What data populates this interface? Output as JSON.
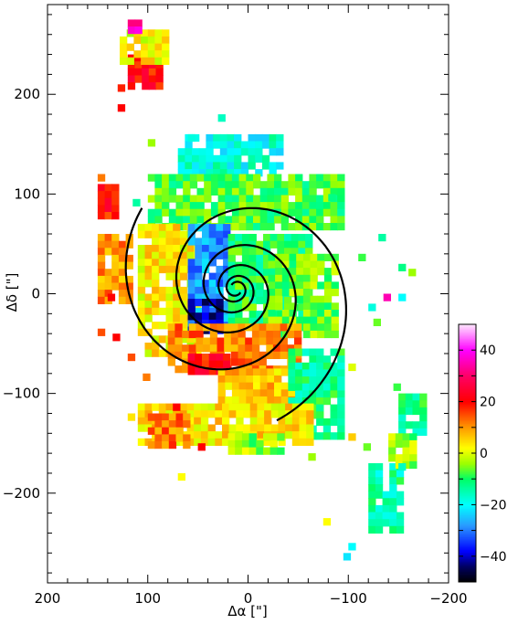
{
  "chart_data": {
    "type": "heatmap",
    "title": "",
    "xlabel": "Δα [\"]",
    "ylabel": "Δδ [\"]",
    "xlim": [
      200,
      -200
    ],
    "ylim": [
      -290,
      290
    ],
    "xticks": [
      200,
      100,
      0,
      -100,
      -200
    ],
    "xtick_labels": [
      "200",
      "100",
      "0",
      "−100",
      "−200"
    ],
    "yticks": [
      200,
      100,
      0,
      -100,
      -200
    ],
    "ytick_labels": [
      "200",
      "100",
      "0",
      "−100",
      "−200"
    ],
    "grid": false,
    "colorbar": {
      "position": "right",
      "range": [
        -50,
        50
      ],
      "ticks": [
        40,
        20,
        0,
        -20,
        -40
      ],
      "tick_labels": [
        "40",
        "20",
        "0",
        "−20",
        "−40"
      ],
      "colors": [
        {
          "value": -50,
          "color": "#000000"
        },
        {
          "value": -44,
          "color": "#000060"
        },
        {
          "value": -38,
          "color": "#0000ff"
        },
        {
          "value": -28,
          "color": "#2a9bff"
        },
        {
          "value": -20,
          "color": "#00ffff"
        },
        {
          "value": -10,
          "color": "#00ff66"
        },
        {
          "value": -4,
          "color": "#9cff00"
        },
        {
          "value": 2,
          "color": "#ffff00"
        },
        {
          "value": 10,
          "color": "#ff9900"
        },
        {
          "value": 20,
          "color": "#ff0000"
        },
        {
          "value": 30,
          "color": "#ff0066"
        },
        {
          "value": 40,
          "color": "#ff00ff"
        },
        {
          "value": 50,
          "color": "#ffe6ff"
        }
      ]
    },
    "pixel_size_arcsec": 7,
    "regions": [
      {
        "x": [
          120,
          85
        ],
        "y": [
          240,
          205
        ],
        "value": 20
      },
      {
        "x": [
          128,
          85
        ],
        "y": [
          265,
          235
        ],
        "value": 2
      },
      {
        "x": [
          120,
          110
        ],
        "y": [
          275,
          265
        ],
        "value": 35
      },
      {
        "x": [
          150,
          135
        ],
        "y": [
          110,
          80
        ],
        "value": 20
      },
      {
        "x": [
          150,
          120
        ],
        "y": [
          60,
          -10
        ],
        "value": 10
      },
      {
        "x": [
          70,
          -30
        ],
        "y": [
          160,
          120
        ],
        "value": -18
      },
      {
        "x": [
          100,
          -90
        ],
        "y": [
          120,
          70
        ],
        "value": -8
      },
      {
        "x": [
          110,
          50
        ],
        "y": [
          70,
          -60
        ],
        "value": 3
      },
      {
        "x": [
          60,
          20
        ],
        "y": [
          70,
          -30
        ],
        "value": -28
      },
      {
        "x": [
          20,
          -10
        ],
        "y": [
          25,
          -5
        ],
        "value": -46
      },
      {
        "x": [
          60,
          30
        ],
        "y": [
          -5,
          -40
        ],
        "value": -40
      },
      {
        "x": [
          20,
          -60
        ],
        "y": [
          60,
          -30
        ],
        "value": -10
      },
      {
        "x": [
          -20,
          -90
        ],
        "y": [
          40,
          -40
        ],
        "value": -6
      },
      {
        "x": [
          80,
          -50
        ],
        "y": [
          -30,
          -75
        ],
        "value": 12
      },
      {
        "x": [
          60,
          20
        ],
        "y": [
          -60,
          -80
        ],
        "value": 20
      },
      {
        "x": [
          30,
          -70
        ],
        "y": [
          -75,
          -120
        ],
        "value": 6
      },
      {
        "x": [
          -40,
          -90
        ],
        "y": [
          -55,
          -140
        ],
        "value": -12
      },
      {
        "x": [
          110,
          -60
        ],
        "y": [
          -110,
          -150
        ],
        "value": 4
      },
      {
        "x": [
          100,
          60
        ],
        "y": [
          -120,
          -155
        ],
        "value": 12
      },
      {
        "x": [
          20,
          -30
        ],
        "y": [
          -140,
          -160
        ],
        "value": -4
      },
      {
        "x": [
          -120,
          -150
        ],
        "y": [
          -170,
          -240
        ],
        "value": -14
      },
      {
        "x": [
          -150,
          -175
        ],
        "y": [
          -100,
          -140
        ],
        "value": -12
      },
      {
        "x": [
          -140,
          -165
        ],
        "y": [
          -140,
          -170
        ],
        "value": -4
      }
    ],
    "scatter_cells": [
      {
        "x": 130,
        "y": 190,
        "value": 20
      },
      {
        "x": 60,
        "y": 160,
        "value": -18
      },
      {
        "x": 150,
        "y": 120,
        "value": 12
      },
      {
        "x": 100,
        "y": 155,
        "value": -4
      },
      {
        "x": 135,
        "y": -40,
        "value": 20
      },
      {
        "x": 150,
        "y": -35,
        "value": 15
      },
      {
        "x": 120,
        "y": -60,
        "value": 15
      },
      {
        "x": 105,
        "y": -80,
        "value": 12
      },
      {
        "x": -100,
        "y": -70,
        "value": 0
      },
      {
        "x": -110,
        "y": 40,
        "value": -8
      },
      {
        "x": -150,
        "y": 30,
        "value": -12
      },
      {
        "x": -160,
        "y": 25,
        "value": -4
      },
      {
        "x": -135,
        "y": 0,
        "value": 35
      },
      {
        "x": -150,
        "y": 0,
        "value": -20
      },
      {
        "x": -120,
        "y": -10,
        "value": -18
      },
      {
        "x": -125,
        "y": -25,
        "value": -6
      },
      {
        "x": -145,
        "y": -90,
        "value": -8
      },
      {
        "x": -115,
        "y": -150,
        "value": -6
      },
      {
        "x": -150,
        "y": -170,
        "value": -16
      },
      {
        "x": -75,
        "y": -225,
        "value": 2
      },
      {
        "x": -95,
        "y": -260,
        "value": -22
      },
      {
        "x": -100,
        "y": -250,
        "value": -20
      },
      {
        "x": 70,
        "y": -180,
        "value": 2
      },
      {
        "x": 50,
        "y": -150,
        "value": 20
      },
      {
        "x": -60,
        "y": -160,
        "value": -4
      },
      {
        "x": -100,
        "y": -140,
        "value": 6
      },
      {
        "x": 75,
        "y": -110,
        "value": 20
      },
      {
        "x": 120,
        "y": -120,
        "value": 4
      },
      {
        "x": -80,
        "y": 100,
        "value": -12
      },
      {
        "x": -130,
        "y": 60,
        "value": -14
      },
      {
        "x": 30,
        "y": 180,
        "value": -16
      },
      {
        "x": 140,
        "y": 0,
        "value": 20
      },
      {
        "x": 115,
        "y": 95,
        "value": -14
      },
      {
        "x": 130,
        "y": 210,
        "value": 18
      }
    ],
    "spiral_arms": [
      {
        "a": 0.42,
        "b": 0.195,
        "theta": [
          0.7,
          17.0
        ],
        "rotation": 0
      },
      {
        "a": 0.42,
        "b": 0.195,
        "theta": [
          0.7,
          16.45
        ],
        "rotation": 3.1416
      }
    ],
    "spiral_center": [
      12,
      5
    ]
  }
}
